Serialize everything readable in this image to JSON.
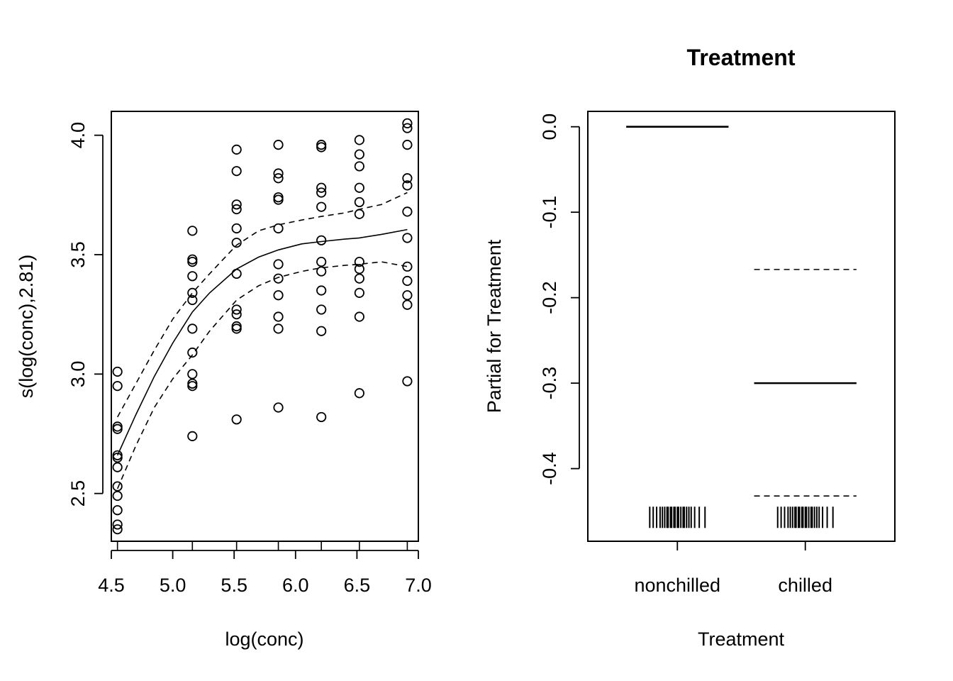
{
  "chart_data": [
    {
      "type": "line",
      "xlabel": "log(conc)",
      "ylabel": "s(log(conc),2.81)",
      "xlim": [
        4.5,
        7.0
      ],
      "ylim": [
        2.3,
        4.1
      ],
      "x_ticks": [
        "4.5",
        "5.0",
        "5.5",
        "6.0",
        "6.5",
        "7.0"
      ],
      "y_ticks": [
        "2.5",
        "3.0",
        "3.5",
        "4.0"
      ],
      "grid": false,
      "series": [
        {
          "style": "solid",
          "x": [
            4.55,
            4.7,
            4.85,
            5.0,
            5.16,
            5.3,
            5.52,
            5.7,
            5.86,
            6.05,
            6.21,
            6.4,
            6.52,
            6.7,
            6.91
          ],
          "y": [
            2.66,
            2.83,
            2.99,
            3.13,
            3.26,
            3.34,
            3.44,
            3.49,
            3.52,
            3.545,
            3.555,
            3.565,
            3.57,
            3.585,
            3.605
          ]
        },
        {
          "style": "dashed",
          "x": [
            4.55,
            4.7,
            4.85,
            5.0,
            5.16,
            5.3,
            5.52,
            5.7,
            5.86,
            6.05,
            6.21,
            6.4,
            6.52,
            6.7,
            6.91
          ],
          "y": [
            2.82,
            2.96,
            3.1,
            3.23,
            3.34,
            3.42,
            3.54,
            3.6,
            3.625,
            3.645,
            3.66,
            3.675,
            3.69,
            3.71,
            3.76
          ]
        },
        {
          "style": "dashed",
          "x": [
            4.55,
            4.7,
            4.85,
            5.0,
            5.16,
            5.3,
            5.52,
            5.7,
            5.86,
            6.05,
            6.21,
            6.4,
            6.52,
            6.7,
            6.91
          ],
          "y": [
            2.52,
            2.7,
            2.86,
            2.98,
            3.08,
            3.18,
            3.31,
            3.37,
            3.405,
            3.43,
            3.445,
            3.455,
            3.46,
            3.47,
            3.45
          ]
        }
      ],
      "points": [
        [
          4.55,
          3.01
        ],
        [
          4.55,
          2.95
        ],
        [
          4.55,
          2.78
        ],
        [
          4.55,
          2.77
        ],
        [
          4.55,
          2.66
        ],
        [
          4.55,
          2.65
        ],
        [
          4.55,
          2.61
        ],
        [
          4.55,
          2.53
        ],
        [
          4.55,
          2.49
        ],
        [
          4.55,
          2.43
        ],
        [
          4.55,
          2.37
        ],
        [
          4.55,
          2.35
        ],
        [
          5.16,
          3.6
        ],
        [
          5.16,
          3.48
        ],
        [
          5.16,
          3.47
        ],
        [
          5.16,
          3.41
        ],
        [
          5.16,
          3.34
        ],
        [
          5.16,
          3.31
        ],
        [
          5.16,
          3.19
        ],
        [
          5.16,
          3.09
        ],
        [
          5.16,
          3.0
        ],
        [
          5.16,
          2.96
        ],
        [
          5.16,
          2.95
        ],
        [
          5.16,
          2.74
        ],
        [
          5.52,
          3.94
        ],
        [
          5.52,
          3.85
        ],
        [
          5.52,
          3.71
        ],
        [
          5.52,
          3.69
        ],
        [
          5.52,
          3.61
        ],
        [
          5.52,
          3.55
        ],
        [
          5.52,
          3.42
        ],
        [
          5.52,
          3.27
        ],
        [
          5.52,
          3.25
        ],
        [
          5.52,
          3.2
        ],
        [
          5.52,
          3.19
        ],
        [
          5.52,
          2.81
        ],
        [
          5.86,
          3.96
        ],
        [
          5.86,
          3.84
        ],
        [
          5.86,
          3.82
        ],
        [
          5.86,
          3.74
        ],
        [
          5.86,
          3.73
        ],
        [
          5.86,
          3.61
        ],
        [
          5.86,
          3.46
        ],
        [
          5.86,
          3.4
        ],
        [
          5.86,
          3.33
        ],
        [
          5.86,
          3.24
        ],
        [
          5.86,
          3.19
        ],
        [
          5.86,
          2.86
        ],
        [
          6.21,
          3.96
        ],
        [
          6.21,
          3.95
        ],
        [
          6.21,
          3.78
        ],
        [
          6.21,
          3.76
        ],
        [
          6.21,
          3.7
        ],
        [
          6.21,
          3.56
        ],
        [
          6.21,
          3.47
        ],
        [
          6.21,
          3.43
        ],
        [
          6.21,
          3.35
        ],
        [
          6.21,
          3.27
        ],
        [
          6.21,
          3.18
        ],
        [
          6.21,
          2.82
        ],
        [
          6.52,
          3.98
        ],
        [
          6.52,
          3.92
        ],
        [
          6.52,
          3.87
        ],
        [
          6.52,
          3.78
        ],
        [
          6.52,
          3.72
        ],
        [
          6.52,
          3.67
        ],
        [
          6.52,
          3.47
        ],
        [
          6.52,
          3.44
        ],
        [
          6.52,
          3.4
        ],
        [
          6.52,
          3.34
        ],
        [
          6.52,
          3.24
        ],
        [
          6.52,
          2.92
        ],
        [
          6.91,
          4.05
        ],
        [
          6.91,
          4.03
        ],
        [
          6.91,
          3.96
        ],
        [
          6.91,
          3.82
        ],
        [
          6.91,
          3.79
        ],
        [
          6.91,
          3.68
        ],
        [
          6.91,
          3.57
        ],
        [
          6.91,
          3.45
        ],
        [
          6.91,
          3.39
        ],
        [
          6.91,
          3.33
        ],
        [
          6.91,
          3.29
        ],
        [
          6.91,
          2.97
        ]
      ]
    },
    {
      "type": "bar",
      "title": "Treatment",
      "xlabel": "Treatment",
      "ylabel": "Partial for Treatment",
      "categories": [
        "nonchilled",
        "chilled"
      ],
      "y_ticks": [
        "0.0",
        "-0.1",
        "-0.2",
        "-0.3",
        "-0.4"
      ],
      "ylim": [
        -0.485,
        0.018
      ],
      "grid": false,
      "estimates": [
        0.0,
        -0.3
      ],
      "upper": [
        null,
        -0.167
      ],
      "lower": [
        null,
        -0.432
      ],
      "rug_y": -0.457
    }
  ]
}
